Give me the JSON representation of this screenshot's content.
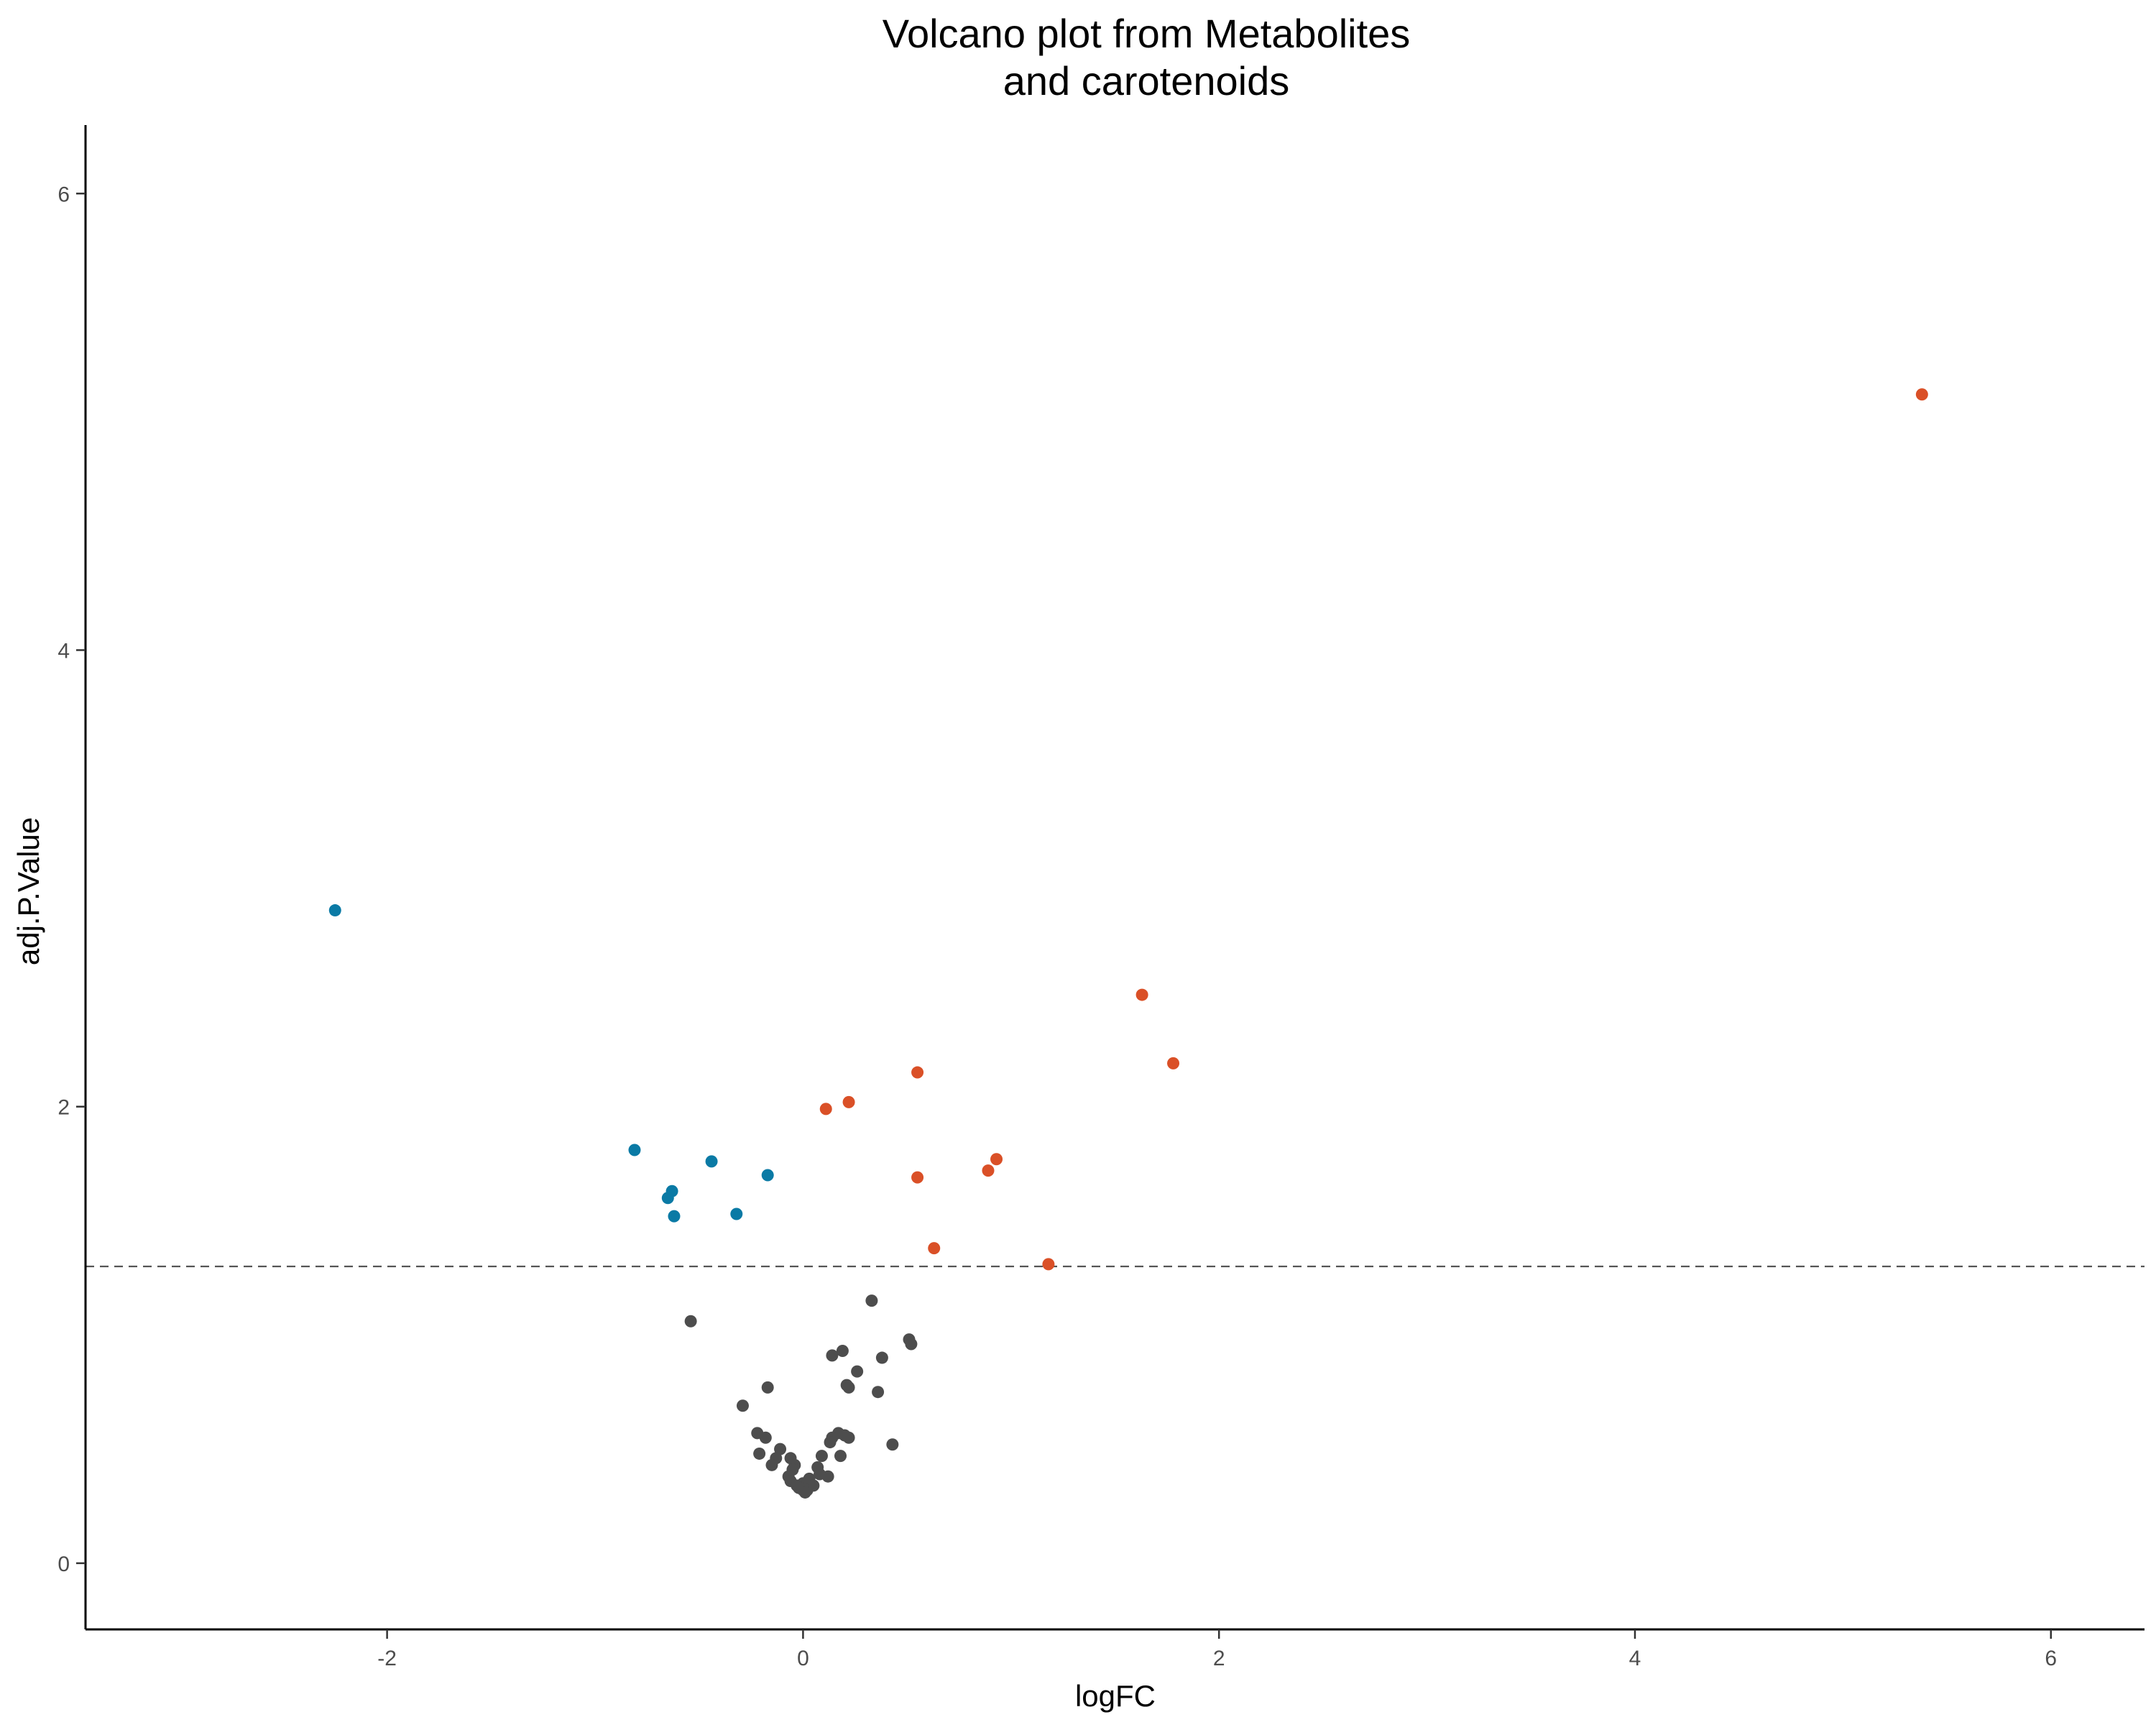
{
  "chart_data": {
    "type": "scatter",
    "title": [
      "Volcano plot from Metabolites",
      "and carotenoids"
    ],
    "xlabel": "logFC",
    "ylabel": "adj.P.Value",
    "xlim": [
      -3.45,
      6.45
    ],
    "ylim": [
      -0.29,
      6.3
    ],
    "xticks": [
      -2,
      0,
      2,
      4,
      6
    ],
    "yticks": [
      0,
      2,
      4,
      6
    ],
    "grid": false,
    "legend": "none",
    "threshold_y": 1.3,
    "colors": {
      "down": "#0a7aa5",
      "up": "#da5027",
      "ns": "#4d4d4d"
    },
    "series": [
      {
        "group": "down",
        "points": [
          [
            -2.25,
            2.86
          ],
          [
            -0.81,
            1.81
          ],
          [
            -0.63,
            1.63
          ],
          [
            -0.65,
            1.6
          ],
          [
            -0.62,
            1.52
          ],
          [
            -0.44,
            1.76
          ],
          [
            -0.32,
            1.53
          ],
          [
            -0.17,
            1.7
          ]
        ]
      },
      {
        "group": "up",
        "points": [
          [
            5.38,
            5.12
          ],
          [
            1.63,
            2.49
          ],
          [
            1.78,
            2.19
          ],
          [
            0.55,
            2.15
          ],
          [
            0.22,
            2.02
          ],
          [
            0.11,
            1.99
          ],
          [
            0.93,
            1.77
          ],
          [
            0.89,
            1.72
          ],
          [
            0.55,
            1.69
          ],
          [
            0.63,
            1.38
          ],
          [
            1.18,
            1.31
          ]
        ]
      },
      {
        "group": "ns",
        "points": [
          [
            0.33,
            1.15
          ],
          [
            -0.54,
            1.06
          ],
          [
            0.51,
            0.98
          ],
          [
            0.52,
            0.96
          ],
          [
            0.19,
            0.93
          ],
          [
            0.14,
            0.91
          ],
          [
            0.38,
            0.9
          ],
          [
            0.26,
            0.84
          ],
          [
            -0.17,
            0.77
          ],
          [
            0.21,
            0.78
          ],
          [
            0.22,
            0.77
          ],
          [
            0.36,
            0.75
          ],
          [
            -0.29,
            0.69
          ],
          [
            0.17,
            0.57
          ],
          [
            -0.22,
            0.57
          ],
          [
            0.14,
            0.55
          ],
          [
            0.2,
            0.56
          ],
          [
            -0.18,
            0.55
          ],
          [
            0.22,
            0.55
          ],
          [
            0.13,
            0.53
          ],
          [
            0.43,
            0.52
          ],
          [
            -0.11,
            0.5
          ],
          [
            -0.21,
            0.48
          ],
          [
            0.09,
            0.47
          ],
          [
            0.18,
            0.47
          ],
          [
            -0.13,
            0.46
          ],
          [
            -0.06,
            0.46
          ],
          [
            -0.04,
            0.43
          ],
          [
            -0.15,
            0.43
          ],
          [
            0.07,
            0.42
          ],
          [
            -0.05,
            0.41
          ],
          [
            0.08,
            0.39
          ],
          [
            0.12,
            0.38
          ],
          [
            -0.07,
            0.38
          ],
          [
            0.03,
            0.37
          ],
          [
            -0.06,
            0.36
          ],
          [
            0.0,
            0.35
          ],
          [
            -0.03,
            0.34
          ],
          [
            0.05,
            0.34
          ],
          [
            -0.01,
            0.33
          ],
          [
            0.02,
            0.32
          ],
          [
            0.0,
            0.32
          ],
          [
            -0.02,
            0.33
          ],
          [
            0.01,
            0.31
          ]
        ]
      }
    ]
  }
}
